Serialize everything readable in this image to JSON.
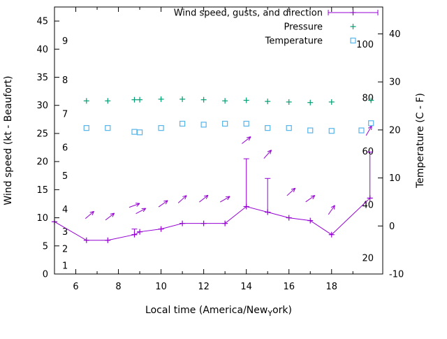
{
  "chart_data": {
    "type": "line",
    "title": "",
    "x_axis": {
      "label_prefix": "Local time (America/New",
      "label_sub": "Y",
      "label_suffix": "ork)",
      "ticks": [
        6,
        8,
        10,
        12,
        14,
        16,
        18
      ],
      "minor_ticks": [
        7,
        9,
        11,
        13,
        15,
        17,
        19
      ],
      "range": [
        5.0,
        20.4
      ]
    },
    "y_left": {
      "label": "Wind speed (kt - Beaufort)",
      "ticks": [
        0,
        5,
        10,
        15,
        20,
        25,
        30,
        35,
        40,
        45
      ],
      "range": [
        0,
        47.5
      ],
      "beaufort_labels": [
        {
          "text": "1",
          "kt": 1.5
        },
        {
          "text": "2",
          "kt": 4.5
        },
        {
          "text": "3",
          "kt": 7.5
        },
        {
          "text": "4",
          "kt": 11.5
        },
        {
          "text": "5",
          "kt": 17.5
        },
        {
          "text": "6",
          "kt": 22.5
        },
        {
          "text": "7",
          "kt": 28.5
        },
        {
          "text": "8",
          "kt": 34.5
        },
        {
          "text": "9",
          "kt": 41.5
        }
      ]
    },
    "y_right": {
      "label": "Temperature (C - F)",
      "ticks": [
        -10,
        0,
        10,
        20,
        30,
        40
      ],
      "range": [
        -10,
        45.6
      ],
      "fahrenheit_labels": [
        {
          "text": "20",
          "f": 20
        },
        {
          "text": "40",
          "f": 40
        },
        {
          "text": "60",
          "f": 60
        },
        {
          "text": "80",
          "f": 80
        },
        {
          "text": "100",
          "f": 100
        }
      ]
    },
    "legend": [
      {
        "label": "Wind speed, gusts, and direction",
        "series": "wind"
      },
      {
        "label": "Pressure",
        "series": "pressure"
      },
      {
        "label": "Temperature",
        "series": "temperature"
      }
    ],
    "colors": {
      "wind": "#9400d3",
      "pressure": "#009e73",
      "temperature": "#56b4e9",
      "axis": "#000000",
      "background": "#ffffff"
    },
    "series": {
      "wind": {
        "style": "line with point markers and gust error bars",
        "points": [
          [
            5.0,
            9.3
          ],
          [
            6.5,
            6
          ],
          [
            7.5,
            6
          ],
          [
            8.75,
            7
          ],
          [
            9.0,
            7.5
          ],
          [
            10.0,
            8
          ],
          [
            11.0,
            9
          ],
          [
            12.0,
            9
          ],
          [
            13.0,
            9
          ],
          [
            14.0,
            12
          ],
          [
            15.0,
            11
          ],
          [
            16.0,
            10
          ],
          [
            17.0,
            9.5
          ],
          [
            18.0,
            7
          ],
          [
            19.8,
            13.5
          ]
        ],
        "gusts": [
          [
            8.75,
            7,
            8
          ],
          [
            14.0,
            12,
            20.5
          ],
          [
            15.0,
            11,
            17.0
          ],
          [
            19.8,
            13.5,
            21.7
          ]
        ],
        "arrows": [
          [
            6.65,
            10.5,
            40
          ],
          [
            7.6,
            10.2,
            38
          ],
          [
            8.75,
            12.2,
            20
          ],
          [
            9.05,
            11.2,
            28
          ],
          [
            10.1,
            12.5,
            35
          ],
          [
            11.0,
            13.3,
            42
          ],
          [
            12.0,
            13.4,
            38
          ],
          [
            13.0,
            13.3,
            30
          ],
          [
            14.0,
            23.8,
            38
          ],
          [
            15.0,
            21.3,
            48
          ],
          [
            16.1,
            14.6,
            42
          ],
          [
            17.0,
            13.4,
            35
          ],
          [
            18.0,
            11.4,
            55
          ],
          [
            19.75,
            25.5,
            60
          ]
        ]
      },
      "pressure": {
        "style": "plus markers (no visible value axis, positions on left kt scale)",
        "points_kt_scale": [
          [
            6.5,
            30.8
          ],
          [
            7.5,
            30.8
          ],
          [
            8.75,
            31.0
          ],
          [
            9.0,
            31.0
          ],
          [
            10.0,
            31.1
          ],
          [
            11.0,
            31.1
          ],
          [
            12.0,
            31.0
          ],
          [
            13.0,
            30.8
          ],
          [
            14.0,
            30.9
          ],
          [
            15.0,
            30.7
          ],
          [
            16.0,
            30.6
          ],
          [
            17.0,
            30.5
          ],
          [
            18.0,
            30.6
          ],
          [
            19.85,
            30.9
          ]
        ]
      },
      "temperature": {
        "style": "open square markers, degrees C on right axis",
        "points_c": [
          [
            6.5,
            20.4
          ],
          [
            7.5,
            20.4
          ],
          [
            8.75,
            19.6
          ],
          [
            9.0,
            19.5
          ],
          [
            10.0,
            20.4
          ],
          [
            11.0,
            21.3
          ],
          [
            12.0,
            21.1
          ],
          [
            13.0,
            21.3
          ],
          [
            14.0,
            21.3
          ],
          [
            15.0,
            20.4
          ],
          [
            16.0,
            20.4
          ],
          [
            17.0,
            19.9
          ],
          [
            18.0,
            19.8
          ],
          [
            19.4,
            19.9
          ],
          [
            19.85,
            21.4
          ]
        ]
      }
    }
  }
}
